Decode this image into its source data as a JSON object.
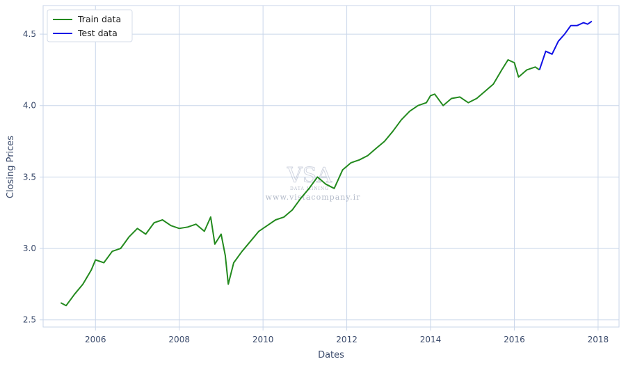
{
  "chart_data": {
    "type": "line",
    "title": "",
    "xlabel": "Dates",
    "ylabel": "Closing Prices",
    "xlim": [
      2004.75,
      2018.5
    ],
    "ylim": [
      2.45,
      4.7
    ],
    "x_ticks": [
      2006,
      2008,
      2010,
      2012,
      2014,
      2016,
      2018
    ],
    "x_tick_labels": [
      "2006",
      "2008",
      "2010",
      "2012",
      "2014",
      "2016",
      "2018"
    ],
    "y_ticks": [
      2.5,
      3.0,
      3.5,
      4.0,
      4.5
    ],
    "y_tick_labels": [
      "2.5",
      "3.0",
      "3.5",
      "4.0",
      "4.5"
    ],
    "grid": true,
    "legend": "top-left",
    "series": [
      {
        "name": "Train data",
        "color": "#238a1e",
        "x": [
          2005.17,
          2005.3,
          2005.5,
          2005.7,
          2005.9,
          2006.0,
          2006.2,
          2006.4,
          2006.6,
          2006.8,
          2007.0,
          2007.2,
          2007.4,
          2007.6,
          2007.8,
          2008.0,
          2008.2,
          2008.4,
          2008.6,
          2008.75,
          2008.85,
          2009.0,
          2009.1,
          2009.17,
          2009.3,
          2009.5,
          2009.7,
          2009.9,
          2010.1,
          2010.3,
          2010.5,
          2010.7,
          2010.9,
          2011.1,
          2011.3,
          2011.5,
          2011.7,
          2011.9,
          2012.1,
          2012.3,
          2012.5,
          2012.7,
          2012.9,
          2013.1,
          2013.3,
          2013.5,
          2013.7,
          2013.9,
          2014.0,
          2014.1,
          2014.3,
          2014.5,
          2014.7,
          2014.9,
          2015.1,
          2015.3,
          2015.5,
          2015.7,
          2015.85,
          2016.0,
          2016.1,
          2016.3,
          2016.5,
          2016.6
        ],
        "y": [
          2.62,
          2.6,
          2.68,
          2.75,
          2.85,
          2.92,
          2.9,
          2.98,
          3.0,
          3.08,
          3.14,
          3.1,
          3.18,
          3.2,
          3.16,
          3.14,
          3.15,
          3.17,
          3.12,
          3.22,
          3.03,
          3.1,
          2.95,
          2.75,
          2.9,
          2.98,
          3.05,
          3.12,
          3.16,
          3.2,
          3.22,
          3.27,
          3.35,
          3.42,
          3.5,
          3.45,
          3.42,
          3.55,
          3.6,
          3.62,
          3.65,
          3.7,
          3.75,
          3.82,
          3.9,
          3.96,
          4.0,
          4.02,
          4.07,
          4.08,
          4.0,
          4.05,
          4.06,
          4.02,
          4.05,
          4.1,
          4.15,
          4.25,
          4.32,
          4.3,
          4.2,
          4.25,
          4.27,
          4.25
        ]
      },
      {
        "name": "Test data",
        "color": "#1010e6",
        "x": [
          2016.6,
          2016.75,
          2016.9,
          2017.05,
          2017.2,
          2017.35,
          2017.5,
          2017.65,
          2017.75,
          2017.85
        ],
        "y": [
          4.25,
          4.38,
          4.36,
          4.45,
          4.5,
          4.56,
          4.56,
          4.58,
          4.57,
          4.59
        ]
      }
    ]
  },
  "watermark": {
    "logo": "VSA",
    "tagline": "DATA MINING",
    "url": "www.vistacompany.ir"
  }
}
